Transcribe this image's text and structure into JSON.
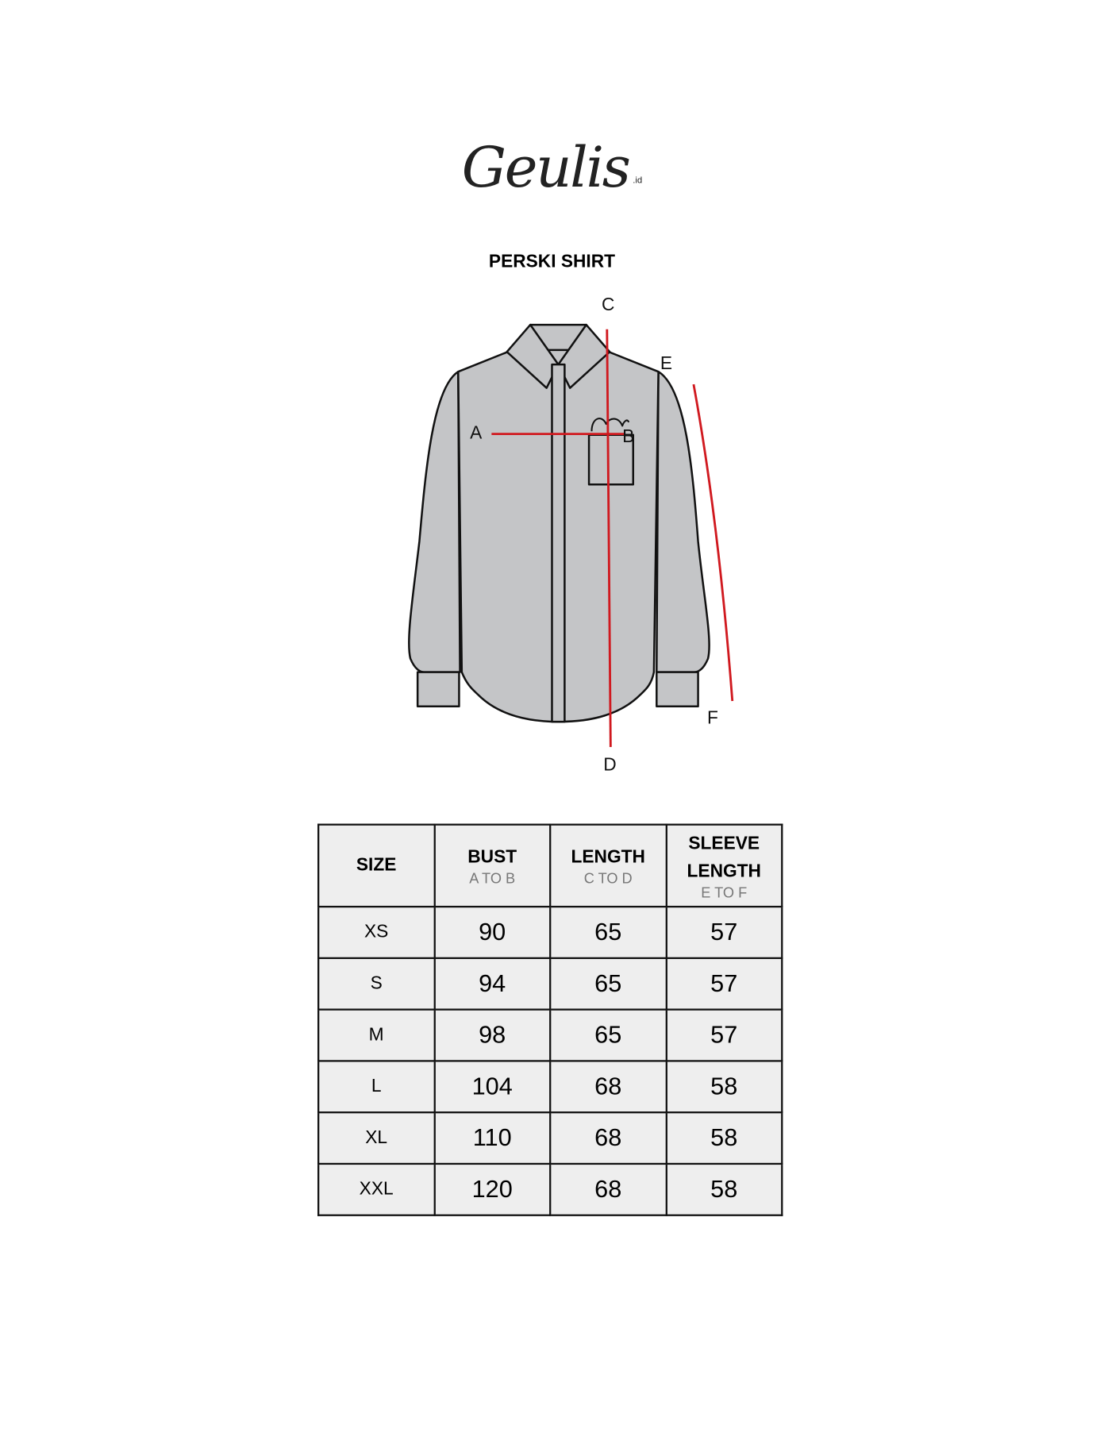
{
  "brand": {
    "logo": "Geulis",
    "suffix": ".id"
  },
  "title": "PERSKI SHIRT",
  "diagram": {
    "labels": {
      "a": "A",
      "b": "B",
      "c": "C",
      "d": "D",
      "e": "E",
      "f": "F"
    },
    "shirt_color": "#c4c5c7",
    "measure_color": "#d0191f"
  },
  "table": {
    "headers": [
      {
        "title": "SIZE",
        "sub": ""
      },
      {
        "title": "BUST",
        "sub": "A TO B"
      },
      {
        "title": "LENGTH",
        "sub": "C TO D"
      },
      {
        "title": "SLEEVE LENGTH",
        "sub": "E TO F"
      }
    ],
    "rows": [
      [
        "XS",
        "90",
        "65",
        "57"
      ],
      [
        "S",
        "94",
        "65",
        "57"
      ],
      [
        "M",
        "98",
        "65",
        "57"
      ],
      [
        "L",
        "104",
        "68",
        "58"
      ],
      [
        "XL",
        "110",
        "68",
        "58"
      ],
      [
        "XXL",
        "120",
        "68",
        "58"
      ]
    ]
  }
}
